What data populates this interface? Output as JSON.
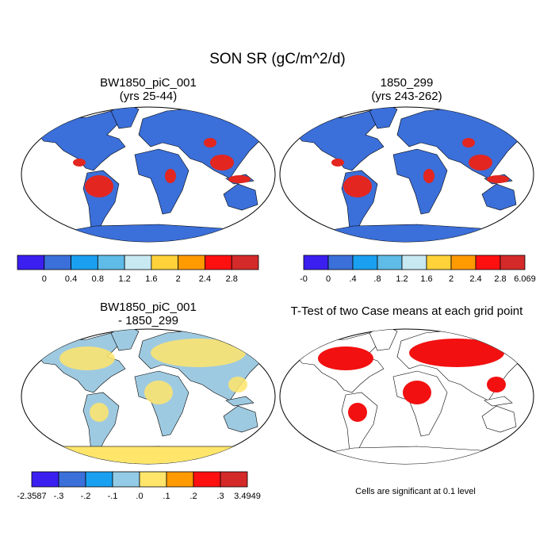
{
  "title": "SON SR (gC/m^2/d)",
  "panels": [
    {
      "title": [
        "BW1850_piC_001",
        "(yrs 25-44)"
      ]
    },
    {
      "title": [
        "1850_299",
        "(yrs 243-262)"
      ]
    },
    {
      "title": [
        "BW1850_piC_001",
        "- 1850_299"
      ]
    },
    {
      "title": [
        "T-Test of two Case means at each grid point"
      ],
      "note": "Cells are significant at 0.1 level"
    }
  ],
  "colorbars": [
    {
      "colors": [
        "#3b1ff0",
        "#3b6fd9",
        "#1aa0f0",
        "#5fbbe8",
        "#c8e8f2",
        "#ffd23a",
        "#ff9a00",
        "#ff1010",
        "#d42a2a"
      ],
      "labels": [
        "0",
        "0.4",
        "0.8",
        "1.2",
        "1.6",
        "2",
        "2.4",
        "2.8"
      ]
    },
    {
      "colors": [
        "#3b1ff0",
        "#3b6fd9",
        "#1aa0f0",
        "#5fbbe8",
        "#c8e8f2",
        "#ffd23a",
        "#ff9a00",
        "#ff1010",
        "#d42a2a"
      ],
      "labels": [
        "-0",
        "0",
        ".4",
        ".8",
        "1.2",
        "1.6",
        "2",
        "2.4",
        "2.8",
        "6.069"
      ]
    },
    {
      "colors": [
        "#3b1ff0",
        "#3b6fd9",
        "#1aa0f0",
        "#93cbe6",
        "#ffe66b",
        "#ff9a00",
        "#ff1010",
        "#d42a2a"
      ],
      "labels": [
        "-2.3587",
        "-.3",
        "-.2",
        "-.1",
        ".0",
        ".1",
        ".2",
        ".3",
        "3.4949"
      ]
    }
  ]
}
